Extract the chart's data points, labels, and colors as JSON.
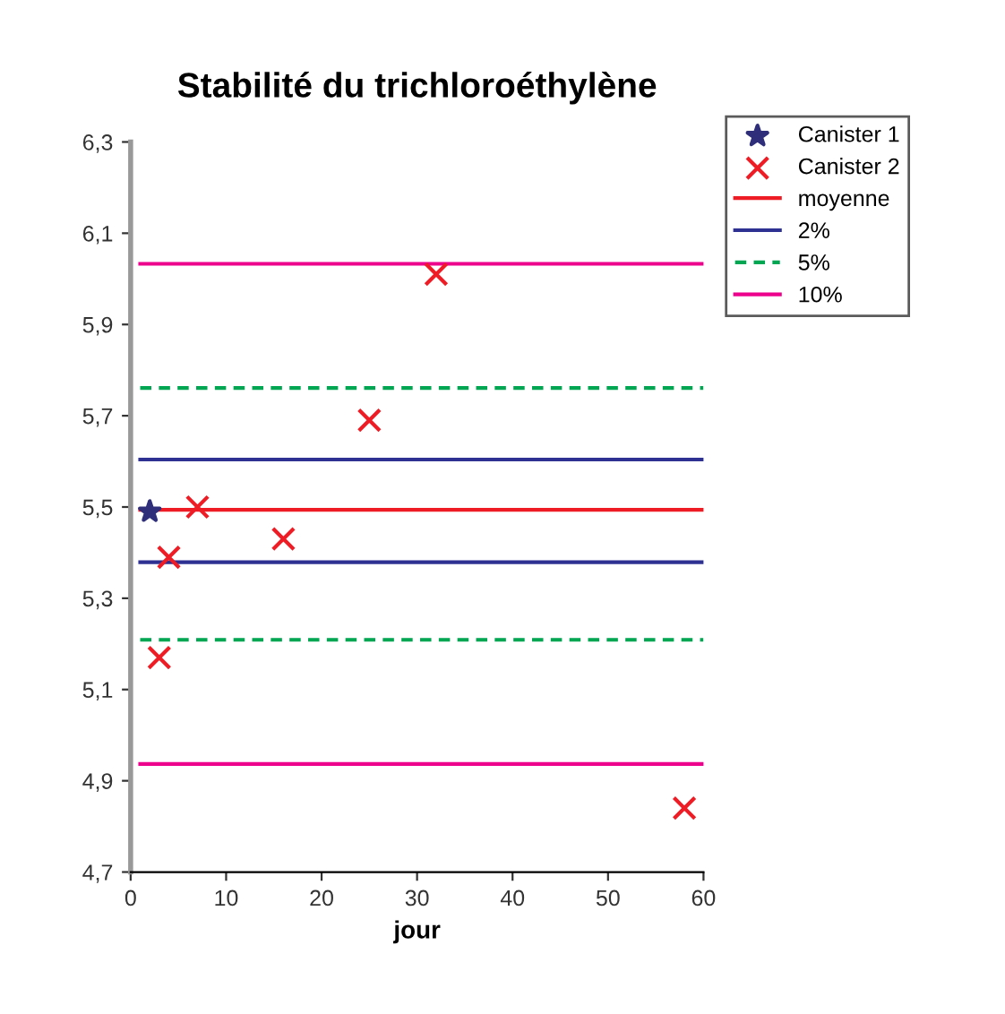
{
  "chart_data": {
    "type": "scatter",
    "title": "Stabilité du trichloroéthylène",
    "xlabel": "jour",
    "xlim": [
      0,
      60
    ],
    "xticks": [
      0,
      10,
      20,
      30,
      40,
      50,
      60
    ],
    "ylim": [
      4.7,
      6.3
    ],
    "yticks": [
      {
        "value": 4.7,
        "label": "4,7"
      },
      {
        "value": 4.9,
        "label": "4,9"
      },
      {
        "value": 5.1,
        "label": "5,1"
      },
      {
        "value": 5.3,
        "label": "5,3"
      },
      {
        "value": 5.5,
        "label": "5,5"
      },
      {
        "value": 5.7,
        "label": "5,7"
      },
      {
        "value": 5.9,
        "label": "5,9"
      },
      {
        "value": 6.1,
        "label": "6,1"
      },
      {
        "value": 6.3,
        "label": "6,3"
      }
    ],
    "grid": false,
    "legend": "right",
    "series": [
      {
        "name": "Canister 1",
        "marker": "star",
        "color": "#2e2e7a",
        "x": [
          2
        ],
        "values": [
          5.49
        ]
      },
      {
        "name": "Canister 2",
        "marker": "cross",
        "color": "#ee1c25",
        "x": [
          3,
          4,
          7,
          16,
          25,
          32,
          58
        ],
        "values": [
          5.17,
          5.39,
          5.5,
          5.43,
          5.69,
          6.01,
          4.84
        ]
      },
      {
        "name": "moyenne",
        "type": "line",
        "line_style": "solid",
        "color": "#ee1c25",
        "x": [
          1,
          60
        ],
        "values": [
          5.494,
          5.494
        ]
      },
      {
        "name": "2%",
        "type": "line",
        "line_style": "solid",
        "color": "#2e3192",
        "x": [
          1,
          60
        ],
        "values": [
          5.604,
          5.604
        ]
      },
      {
        "type": "line",
        "line_style": "solid",
        "color": "#2e3192",
        "x": [
          1,
          60
        ],
        "values": [
          5.379,
          5.379
        ]
      },
      {
        "name": "5%",
        "type": "line",
        "line_style": "dashed",
        "color": "#00a651",
        "x": [
          1,
          60
        ],
        "values": [
          5.761,
          5.761
        ]
      },
      {
        "type": "line",
        "line_style": "dashed",
        "color": "#00a651",
        "x": [
          1,
          60
        ],
        "values": [
          5.209,
          5.209
        ]
      },
      {
        "name": "10%",
        "type": "line",
        "line_style": "solid",
        "color": "#ec008c",
        "x": [
          1,
          60
        ],
        "values": [
          6.033,
          6.033
        ]
      },
      {
        "type": "line",
        "line_style": "solid",
        "color": "#ec008c",
        "x": [
          1,
          60
        ],
        "values": [
          4.937,
          4.937
        ]
      }
    ]
  }
}
